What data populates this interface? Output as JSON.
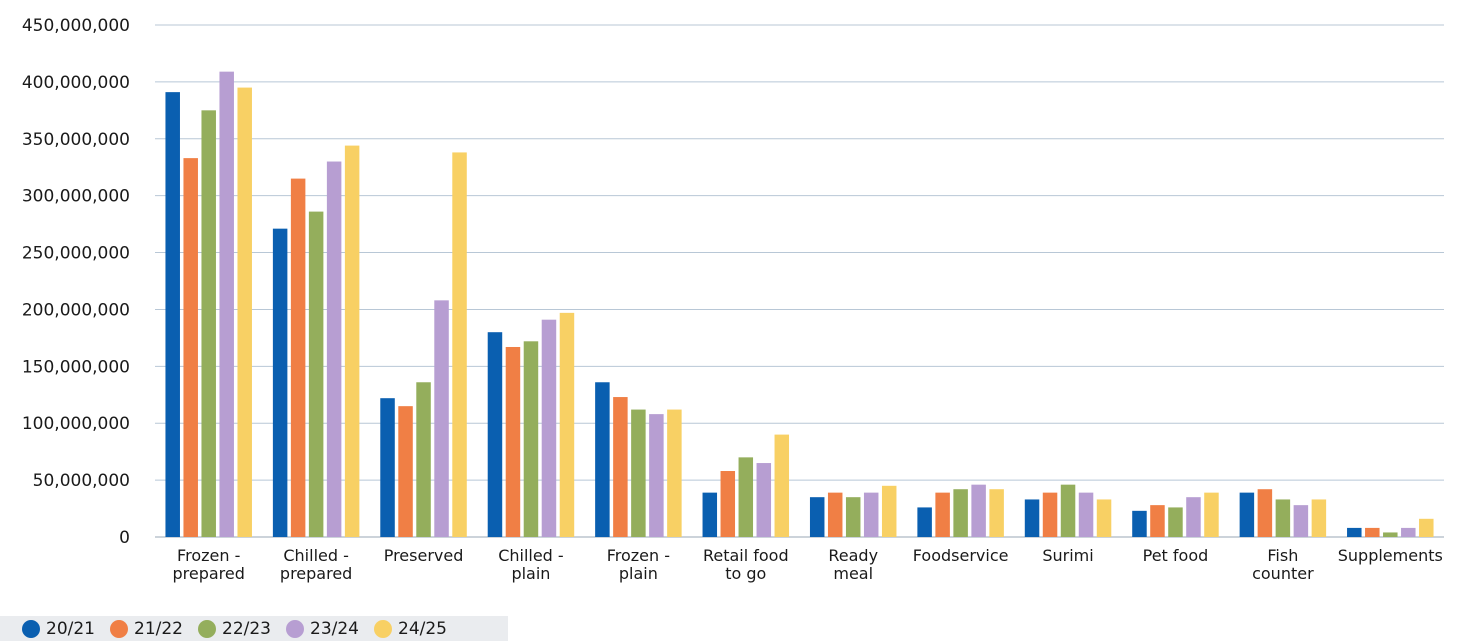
{
  "chart_data": {
    "type": "bar",
    "title": "",
    "xlabel": "",
    "ylabel": "",
    "ylim": [
      0,
      450000000
    ],
    "yticks": [
      0,
      50000000,
      100000000,
      150000000,
      200000000,
      250000000,
      300000000,
      350000000,
      400000000,
      450000000
    ],
    "ytick_labels": [
      "0",
      "50,000,000",
      "100,000,000",
      "150,000,000",
      "200,000,000",
      "250,000,000",
      "300,000,000",
      "350,000,000",
      "400,000,000",
      "450,000,000"
    ],
    "grid": "horizontal",
    "legend_position": "bottom-left",
    "categories": [
      [
        "Frozen -",
        "prepared"
      ],
      [
        "Chilled -",
        "prepared"
      ],
      [
        "Preserved"
      ],
      [
        "Chilled -",
        "plain"
      ],
      [
        "Frozen -",
        "plain"
      ],
      [
        "Retail food",
        "to go"
      ],
      [
        "Ready",
        "meal"
      ],
      [
        "Foodservice"
      ],
      [
        "Surimi"
      ],
      [
        "Pet food"
      ],
      [
        "Fish",
        "counter"
      ],
      [
        "Supplements"
      ]
    ],
    "series": [
      {
        "name": "20/21",
        "color": "#0a5fb0",
        "values": [
          391000000,
          271000000,
          122000000,
          180000000,
          136000000,
          39000000,
          35000000,
          26000000,
          33000000,
          23000000,
          39000000,
          8000000
        ]
      },
      {
        "name": "21/22",
        "color": "#f07f45",
        "values": [
          333000000,
          315000000,
          115000000,
          167000000,
          123000000,
          58000000,
          39000000,
          39000000,
          39000000,
          28000000,
          42000000,
          8000000
        ]
      },
      {
        "name": "22/23",
        "color": "#94ae5c",
        "values": [
          375000000,
          286000000,
          136000000,
          172000000,
          112000000,
          70000000,
          35000000,
          42000000,
          46000000,
          26000000,
          33000000,
          4000000
        ]
      },
      {
        "name": "23/24",
        "color": "#b79ed2",
        "values": [
          409000000,
          330000000,
          208000000,
          191000000,
          108000000,
          65000000,
          39000000,
          46000000,
          39000000,
          35000000,
          28000000,
          8000000
        ]
      },
      {
        "name": "24/25",
        "color": "#f8d064",
        "values": [
          395000000,
          344000000,
          338000000,
          197000000,
          112000000,
          90000000,
          45000000,
          42000000,
          33000000,
          39000000,
          33000000,
          16000000
        ]
      }
    ]
  }
}
